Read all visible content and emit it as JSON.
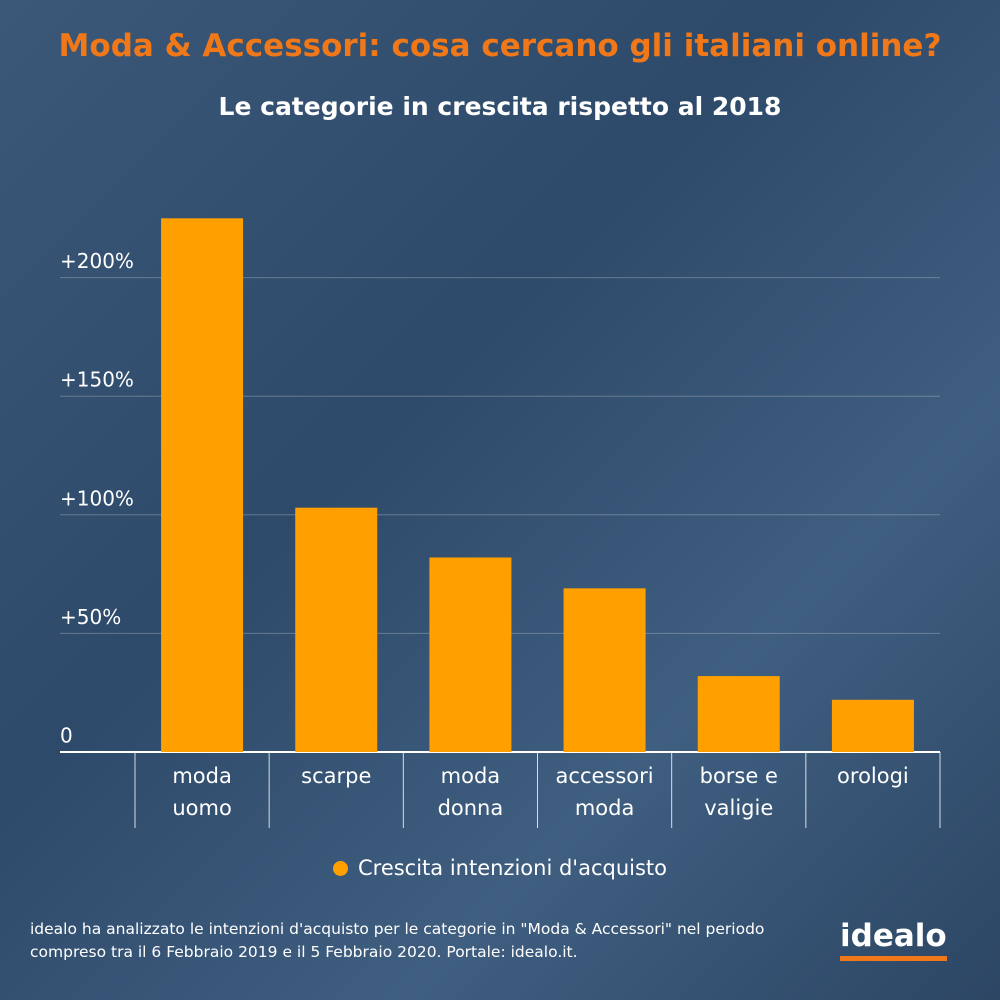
{
  "chart_data": {
    "type": "bar",
    "title": "Moda & Accessori: cosa cercano gli italiani online?",
    "subtitle": "Le categorie in crescita rispetto al 2018",
    "categories": [
      "moda uomo",
      "scarpe",
      "moda donna",
      "accessori moda",
      "borse e valigie",
      "orologi"
    ],
    "series": [
      {
        "name": "Crescita intenzioni d'acquisto",
        "color": "#ffa000",
        "values": [
          225,
          103,
          82,
          69,
          32,
          22
        ]
      }
    ],
    "ylim": [
      0,
      250
    ],
    "yticks": [
      0,
      {
        "value": 50,
        "label": "+50%"
      },
      {
        "value": 100,
        "label": "+100%"
      },
      {
        "value": 150,
        "label": "+150%"
      },
      {
        "value": 200,
        "label": "+200%"
      }
    ],
    "grid": true,
    "legend": "bottom"
  },
  "footer": {
    "note": "idealo ha analizzato le intenzioni d'acquisto per le categorie in \"Moda & Accessori\" nel periodo compreso tra il 6 Febbraio 2019 e il 5 Febbraio 2020. Portale: idealo.it.",
    "logo": "idealo"
  }
}
